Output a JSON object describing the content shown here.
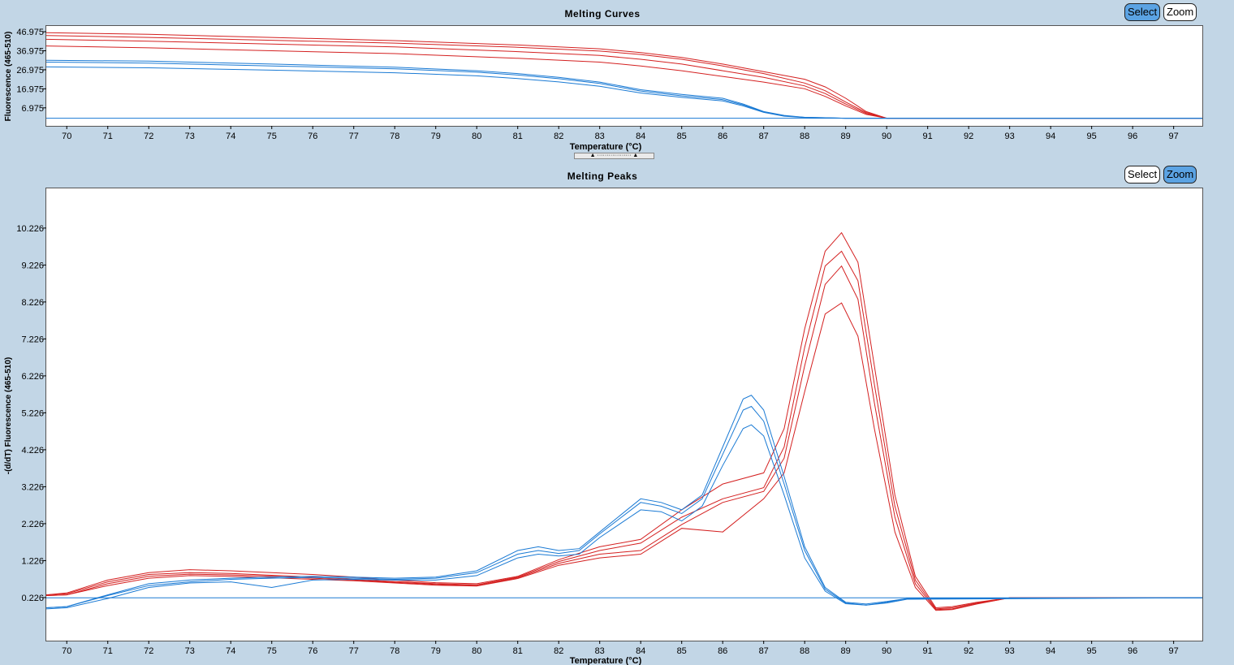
{
  "charts": [
    {
      "id": "curves",
      "title": "Melting Curves",
      "buttons": {
        "select": "Select",
        "zoom": "Zoom",
        "active": "select"
      }
    },
    {
      "id": "peaks",
      "title": "Melting Peaks",
      "buttons": {
        "select": "Select",
        "zoom": "Zoom",
        "active": "zoom"
      }
    }
  ],
  "colors": {
    "red_series": "#d42020",
    "blue_series": "#1a7ad4",
    "background": "#c2d6e6"
  },
  "chart_data": [
    {
      "type": "line",
      "title": "Melting Curves",
      "xlabel": "Temperature (°C)",
      "ylabel": "Fluorescence (465-510)",
      "xlim": [
        69.5,
        97.7
      ],
      "ylim": [
        -2.5,
        50
      ],
      "xticks": [
        "70",
        "71",
        "72",
        "73",
        "74",
        "75",
        "76",
        "77",
        "78",
        "79",
        "80",
        "81",
        "82",
        "83",
        "84",
        "85",
        "86",
        "87",
        "88",
        "89",
        "90",
        "91",
        "92",
        "93",
        "94",
        "95",
        "96",
        "97"
      ],
      "yticks": [
        "6.975",
        "16.975",
        "26.975",
        "36.975",
        "46.975"
      ],
      "series": [
        {
          "color": "red",
          "x": [
            69.5,
            72,
            75,
            78,
            81,
            83,
            84,
            85,
            86,
            87,
            88,
            88.5,
            89,
            89.5,
            90,
            91,
            97.7
          ],
          "y": [
            46.5,
            45.6,
            44,
            42.3,
            40,
            38,
            36,
            33.5,
            30,
            26,
            22,
            18,
            12,
            5,
            1.5,
            1.5,
            1.5
          ]
        },
        {
          "color": "red",
          "x": [
            69.5,
            72,
            75,
            78,
            81,
            83,
            84,
            85,
            86,
            87,
            88,
            88.5,
            89,
            89.5,
            90,
            91,
            97.7
          ],
          "y": [
            45,
            44,
            42.5,
            41,
            38.8,
            36.8,
            35,
            32.5,
            29,
            25,
            20,
            16,
            10,
            4.5,
            1.5,
            1.5,
            1.5
          ]
        },
        {
          "color": "red",
          "x": [
            69.5,
            72,
            75,
            78,
            81,
            83,
            84,
            85,
            86,
            87,
            88,
            88.5,
            89,
            89.5,
            90,
            91,
            97.7
          ],
          "y": [
            43,
            42,
            40.5,
            39,
            36.5,
            34.5,
            32.5,
            30,
            26.5,
            23,
            18.5,
            14.5,
            9,
            4,
            1.5,
            1.5,
            1.5
          ]
        },
        {
          "color": "red",
          "x": [
            69.5,
            72,
            75,
            78,
            81,
            83,
            84,
            85,
            86,
            87,
            88,
            88.5,
            89,
            89.5,
            90,
            91,
            97.7
          ],
          "y": [
            39.5,
            38.5,
            37,
            35.5,
            33,
            31,
            29,
            26.5,
            23.5,
            20.5,
            17,
            13,
            8,
            3.5,
            1.5,
            1.5,
            1.5
          ]
        },
        {
          "color": "blue",
          "x": [
            69.5,
            72,
            75,
            78,
            80,
            81,
            82,
            83,
            84,
            85,
            86,
            86.5,
            87,
            87.5,
            88,
            89,
            97.7
          ],
          "y": [
            32,
            31.5,
            30,
            28.3,
            26.5,
            25,
            23,
            20.5,
            16.5,
            14,
            12,
            9,
            5,
            3,
            2,
            1.5,
            1.5
          ]
        },
        {
          "color": "blue",
          "x": [
            69.5,
            72,
            75,
            78,
            80,
            81,
            82,
            83,
            84,
            85,
            86,
            86.5,
            87,
            87.5,
            88,
            89,
            97.7
          ],
          "y": [
            31,
            30.5,
            29,
            27.5,
            25.7,
            24.2,
            22.3,
            19.8,
            15.8,
            13.3,
            11.3,
            8.5,
            4.8,
            2.8,
            2,
            1.5,
            1.5
          ]
        },
        {
          "color": "blue",
          "x": [
            69.5,
            72,
            75,
            78,
            80,
            81,
            82,
            83,
            84,
            85,
            86,
            86.5,
            87,
            87.5,
            88,
            89,
            97.7
          ],
          "y": [
            28.5,
            28,
            26.8,
            25.4,
            23.8,
            22.4,
            20.6,
            18.3,
            14.8,
            12.5,
            10.6,
            8,
            4.6,
            2.6,
            1.9,
            1.5,
            1.5
          ]
        },
        {
          "color": "blue",
          "x": [
            69.5,
            97.7
          ],
          "y": [
            1.5,
            1.5
          ]
        }
      ]
    },
    {
      "type": "line",
      "title": "Melting Peaks",
      "xlabel": "Temperature (°C)",
      "ylabel": "-(d/dT) Fluorescence (465-510)",
      "xlim": [
        69.5,
        97.7
      ],
      "ylim": [
        -0.94,
        11.3
      ],
      "xticks": [
        "70",
        "71",
        "72",
        "73",
        "74",
        "75",
        "76",
        "77",
        "78",
        "79",
        "80",
        "81",
        "82",
        "83",
        "84",
        "85",
        "86",
        "87",
        "88",
        "89",
        "90",
        "91",
        "92",
        "93",
        "94",
        "95",
        "96",
        "97"
      ],
      "yticks": [
        "0.226",
        "1.226",
        "2.226",
        "3.226",
        "4.226",
        "5.226",
        "6.226",
        "7.226",
        "8.226",
        "9.226",
        "10.226"
      ],
      "series": [
        {
          "color": "red",
          "x": [
            69.5,
            70,
            71,
            72,
            73,
            74,
            75,
            76,
            77,
            78,
            79,
            80,
            81,
            82,
            83,
            84,
            85,
            86,
            87,
            87.5,
            88,
            88.5,
            88.9,
            89.3,
            89.7,
            90.2,
            90.7,
            91.2,
            91.6,
            92.2,
            93,
            97.7
          ],
          "y": [
            0.3,
            0.35,
            0.7,
            0.9,
            0.98,
            0.95,
            0.9,
            0.85,
            0.78,
            0.7,
            0.63,
            0.6,
            0.8,
            1.25,
            1.6,
            1.8,
            2.6,
            3.3,
            3.6,
            4.8,
            7.5,
            9.6,
            10.1,
            9.3,
            6.5,
            3,
            0.8,
            -0.05,
            -0.02,
            0.1,
            0.22,
            0.22
          ]
        },
        {
          "color": "red",
          "x": [
            69.5,
            70,
            71,
            72,
            73,
            74,
            75,
            76,
            77,
            78,
            79,
            80,
            81,
            82,
            83,
            84,
            85,
            86,
            87,
            87.5,
            88,
            88.5,
            88.9,
            89.3,
            89.7,
            90.2,
            90.7,
            91.2,
            91.6,
            92.2,
            93,
            97.7
          ],
          "y": [
            0.3,
            0.33,
            0.65,
            0.85,
            0.9,
            0.88,
            0.83,
            0.78,
            0.72,
            0.66,
            0.6,
            0.57,
            0.78,
            1.2,
            1.5,
            1.7,
            2.4,
            2.9,
            3.2,
            4.3,
            7,
            9.2,
            9.6,
            8.8,
            6,
            2.7,
            0.7,
            -0.08,
            -0.05,
            0.08,
            0.22,
            0.22
          ]
        },
        {
          "color": "red",
          "x": [
            69.5,
            70,
            71,
            72,
            73,
            74,
            75,
            76,
            77,
            78,
            79,
            80,
            81,
            82,
            83,
            84,
            85,
            86,
            87,
            87.5,
            88,
            88.5,
            88.9,
            89.3,
            89.7,
            90.2,
            90.7,
            91.2,
            91.6,
            92.2,
            93,
            97.7
          ],
          "y": [
            0.28,
            0.3,
            0.6,
            0.8,
            0.86,
            0.84,
            0.8,
            0.75,
            0.7,
            0.64,
            0.58,
            0.55,
            0.76,
            1.15,
            1.4,
            1.5,
            2.2,
            2.8,
            3.1,
            4,
            6.5,
            8.7,
            9.2,
            8.3,
            5.5,
            2.4,
            0.6,
            -0.1,
            -0.08,
            0.06,
            0.22,
            0.22
          ]
        },
        {
          "color": "red",
          "x": [
            69.5,
            70,
            71,
            72,
            73,
            74,
            75,
            76,
            77,
            78,
            79,
            80,
            81,
            82,
            83,
            84,
            85,
            86,
            87,
            87.5,
            88,
            88.5,
            88.9,
            89.3,
            89.7,
            90.2,
            90.7,
            91.2,
            91.6,
            92.2,
            93,
            97.7
          ],
          "y": [
            0.28,
            0.3,
            0.55,
            0.75,
            0.82,
            0.8,
            0.76,
            0.72,
            0.68,
            0.62,
            0.56,
            0.54,
            0.74,
            1.1,
            1.3,
            1.4,
            2.1,
            2,
            2.9,
            3.6,
            5.8,
            7.9,
            8.2,
            7.3,
            4.8,
            2,
            0.5,
            -0.12,
            -0.1,
            0.05,
            0.22,
            0.22
          ]
        },
        {
          "color": "blue",
          "x": [
            69.5,
            70,
            71,
            72,
            73,
            74,
            75,
            76,
            77,
            78,
            79,
            80,
            81,
            81.5,
            82,
            82.5,
            83,
            84,
            84.5,
            85,
            85.5,
            86,
            86.5,
            86.7,
            87,
            87.5,
            88,
            88.5,
            89,
            89.5,
            90,
            90.5,
            97.7
          ],
          "y": [
            -0.05,
            -0.02,
            0.3,
            0.6,
            0.7,
            0.75,
            0.78,
            0.8,
            0.78,
            0.75,
            0.78,
            0.95,
            1.5,
            1.6,
            1.5,
            1.55,
            2,
            2.9,
            2.8,
            2.6,
            3,
            4.3,
            5.6,
            5.7,
            5.3,
            3.5,
            1.6,
            0.5,
            0.1,
            0.05,
            0.12,
            0.2,
            0.22
          ]
        },
        {
          "color": "blue",
          "x": [
            69.5,
            70,
            71,
            72,
            73,
            74,
            75,
            76,
            77,
            78,
            79,
            80,
            81,
            81.5,
            82,
            82.5,
            83,
            84,
            84.5,
            85,
            85.5,
            86,
            86.5,
            86.7,
            87,
            87.5,
            88,
            88.5,
            89,
            89.5,
            90,
            90.5,
            97.7
          ],
          "y": [
            -0.05,
            -0.02,
            0.28,
            0.55,
            0.65,
            0.72,
            0.75,
            0.77,
            0.75,
            0.72,
            0.75,
            0.9,
            1.4,
            1.5,
            1.42,
            1.5,
            1.95,
            2.8,
            2.7,
            2.5,
            2.9,
            4.1,
            5.3,
            5.4,
            5,
            3.3,
            1.5,
            0.45,
            0.08,
            0.02,
            0.1,
            0.2,
            0.22
          ]
        },
        {
          "color": "blue",
          "x": [
            69.5,
            70,
            71,
            72,
            73,
            74,
            75,
            76,
            77,
            78,
            79,
            80,
            81,
            81.5,
            82,
            82.5,
            83,
            84,
            84.5,
            85,
            85.5,
            86,
            86.5,
            86.7,
            87,
            87.5,
            88,
            88.5,
            89,
            89.5,
            90,
            90.5,
            97.7
          ],
          "y": [
            -0.08,
            -0.05,
            0.2,
            0.5,
            0.62,
            0.65,
            0.5,
            0.7,
            0.72,
            0.7,
            0.7,
            0.82,
            1.3,
            1.4,
            1.35,
            1.4,
            1.85,
            2.6,
            2.55,
            2.3,
            2.7,
            3.8,
            4.8,
            4.9,
            4.6,
            3,
            1.3,
            0.4,
            0.06,
            0.02,
            0.08,
            0.18,
            0.22
          ]
        },
        {
          "color": "blue",
          "x": [
            69.5,
            97.7
          ],
          "y": [
            0.22,
            0.22
          ]
        }
      ]
    }
  ]
}
